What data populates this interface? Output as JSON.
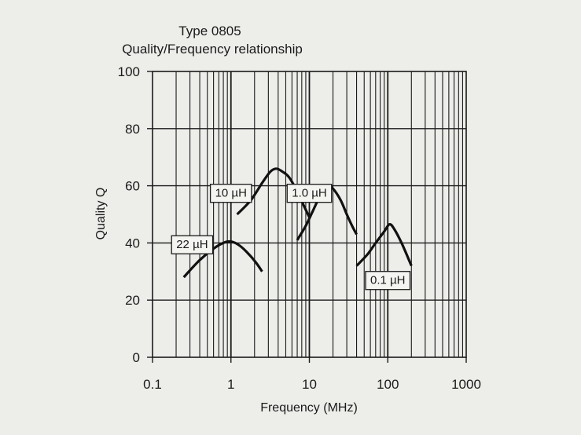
{
  "chart_data": {
    "type": "line",
    "title": "Type 0805",
    "subtitle": "Quality/Frequency relationship",
    "xlabel": "Frequency (MHz)",
    "ylabel": "Quality Q",
    "xscale": "log",
    "xlim": [
      0.1,
      1000
    ],
    "ylim": [
      0,
      100
    ],
    "xticks": [
      {
        "value": 0.1,
        "label": "0.1"
      },
      {
        "value": 1,
        "label": "1"
      },
      {
        "value": 10,
        "label": "10"
      },
      {
        "value": 100,
        "label": "100"
      },
      {
        "value": 1000,
        "label": "1000"
      }
    ],
    "yticks": [
      {
        "value": 0,
        "label": "0"
      },
      {
        "value": 20,
        "label": "20"
      },
      {
        "value": 40,
        "label": "40"
      },
      {
        "value": 60,
        "label": "60"
      },
      {
        "value": 80,
        "label": "80"
      },
      {
        "value": 100,
        "label": "100"
      }
    ],
    "grid": true,
    "series": [
      {
        "name": "22 µH",
        "points": [
          [
            0.25,
            28
          ],
          [
            0.4,
            34
          ],
          [
            0.6,
            38
          ],
          [
            0.8,
            40
          ],
          [
            1.0,
            40.5
          ],
          [
            1.3,
            39
          ],
          [
            1.7,
            36
          ],
          [
            2.1,
            33
          ],
          [
            2.5,
            30
          ]
        ]
      },
      {
        "name": "10 µH",
        "points": [
          [
            1.2,
            50
          ],
          [
            1.8,
            55
          ],
          [
            2.5,
            61
          ],
          [
            3.2,
            65
          ],
          [
            3.8,
            66
          ],
          [
            4.5,
            65
          ],
          [
            5.5,
            63
          ],
          [
            7,
            58
          ],
          [
            8.5,
            53
          ],
          [
            10,
            49
          ]
        ]
      },
      {
        "name": "1.0 µH",
        "points": [
          [
            7,
            41
          ],
          [
            9,
            46
          ],
          [
            11,
            51
          ],
          [
            14,
            57
          ],
          [
            17,
            60
          ],
          [
            20,
            59
          ],
          [
            25,
            55
          ],
          [
            30,
            50
          ],
          [
            35,
            46
          ],
          [
            40,
            43
          ]
        ]
      },
      {
        "name": "0.1 µH",
        "points": [
          [
            40,
            32
          ],
          [
            55,
            36
          ],
          [
            70,
            40
          ],
          [
            90,
            44
          ],
          [
            105,
            46.5
          ],
          [
            120,
            45
          ],
          [
            150,
            40
          ],
          [
            180,
            35
          ],
          [
            200,
            32
          ]
        ]
      }
    ],
    "labels": [
      {
        "text": "10 µH",
        "x": 1.0,
        "y": 57.5
      },
      {
        "text": "1.0 µH",
        "x": 10,
        "y": 57.5
      },
      {
        "text": "22 µH",
        "x": 0.32,
        "y": 39.5
      },
      {
        "text": "0.1 µH",
        "x": 100,
        "y": 27
      }
    ]
  }
}
